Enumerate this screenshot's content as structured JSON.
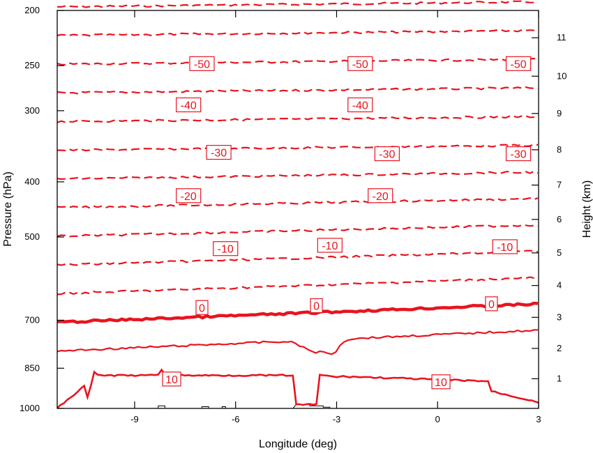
{
  "chart_data": {
    "type": "contour",
    "title": "",
    "xlabel": "Longitude (deg)",
    "ylabel": "Pressure (hPa)",
    "ylabel_right": "Height (km)",
    "xlim": [
      -11.3,
      3.0
    ],
    "ylim_pressure": [
      1000,
      200
    ],
    "x_ticks": [
      -9,
      -6,
      -3,
      0,
      3
    ],
    "pressure_ticks": [
      200,
      250,
      300,
      400,
      500,
      700,
      850,
      1000
    ],
    "height_ticks": [
      1,
      2,
      3,
      4,
      5,
      6,
      7,
      8,
      9,
      10,
      11
    ],
    "line_color": "#e8141e",
    "terrain_color": "#000000",
    "contour_levels": [
      -55,
      -50,
      -45,
      -40,
      -35,
      -30,
      -25,
      -20,
      -15,
      -10,
      -5,
      0,
      5,
      10
    ],
    "contour_labels": [
      {
        "text": "-50",
        "x": -7.0,
        "p": 248
      },
      {
        "text": "-50",
        "x": -2.3,
        "p": 248
      },
      {
        "text": "-50",
        "x": 2.4,
        "p": 248
      },
      {
        "text": "-40",
        "x": -7.4,
        "p": 293
      },
      {
        "text": "-40",
        "x": -2.3,
        "p": 293
      },
      {
        "text": "-30",
        "x": -6.5,
        "p": 355
      },
      {
        "text": "-30",
        "x": -1.5,
        "p": 357
      },
      {
        "text": "-30",
        "x": 2.4,
        "p": 357
      },
      {
        "text": "-20",
        "x": -7.4,
        "p": 423
      },
      {
        "text": "-20",
        "x": -1.7,
        "p": 423
      },
      {
        "text": "-10",
        "x": -6.3,
        "p": 524
      },
      {
        "text": "-10",
        "x": -3.2,
        "p": 517
      },
      {
        "text": "-10",
        "x": 2.0,
        "p": 520
      },
      {
        "text": "0",
        "x": -7.0,
        "p": 665
      },
      {
        "text": "0",
        "x": -3.6,
        "p": 660
      },
      {
        "text": "0",
        "x": 1.6,
        "p": 655
      },
      {
        "text": "10",
        "x": -7.9,
        "p": 888
      },
      {
        "text": "10",
        "x": 0.1,
        "p": 898
      }
    ]
  }
}
